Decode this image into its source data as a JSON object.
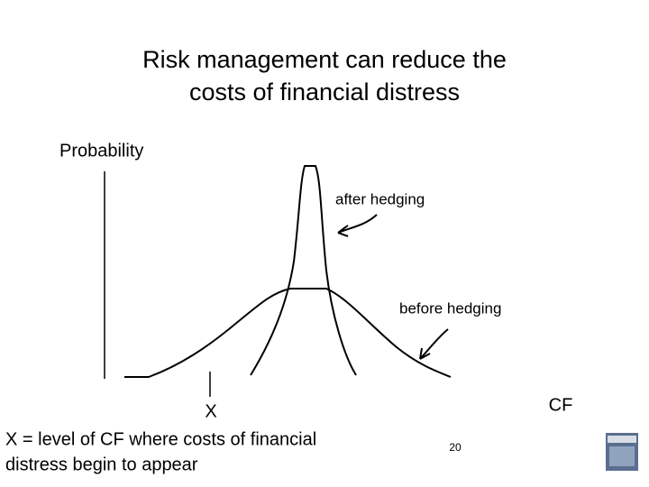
{
  "title": {
    "lines": [
      "Risk management can reduce the",
      "costs of financial distress"
    ]
  },
  "diagram": {
    "y_axis_label": "Probability",
    "x_axis_label": "CF",
    "curves": [
      {
        "label": "after hedging"
      },
      {
        "label": "before hedging"
      }
    ],
    "marker": "X"
  },
  "note": {
    "lines": [
      "X = level of CF where costs of financial",
      "distress begin to appear"
    ]
  },
  "page_number": "20"
}
